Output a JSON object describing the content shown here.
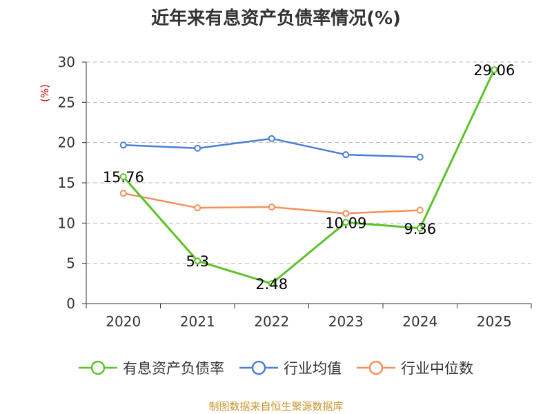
{
  "title": "近年来有息资产负债率情况(%)",
  "y_unit": "(%)",
  "source": "制图数据来自恒生聚源数据库",
  "colors": {
    "debt_ratio": "#5cc22a",
    "industry_avg": "#4a7fd6",
    "industry_median": "#f5905a",
    "axis": "#333333",
    "grid": "#bbbbbb"
  },
  "chart_data": {
    "type": "line",
    "title": "近年来有息资产负债率情况(%)",
    "xlabel": "",
    "ylabel": "(%)",
    "categories": [
      "2020",
      "2021",
      "2022",
      "2023",
      "2024",
      "2025"
    ],
    "ylim": [
      0,
      30
    ],
    "yticks": [
      0,
      5,
      10,
      15,
      20,
      25,
      30
    ],
    "grid": true,
    "legend_position": "bottom",
    "series": [
      {
        "name": "有息资产负债率",
        "color": "#5cc22a",
        "values": [
          15.76,
          5.3,
          2.48,
          10.09,
          9.36,
          29.06
        ],
        "labels": [
          "15.76",
          "5.3",
          "2.48",
          "10.09",
          "9.36",
          "29.06"
        ]
      },
      {
        "name": "行业均值",
        "color": "#4a7fd6",
        "values": [
          19.7,
          19.3,
          20.5,
          18.5,
          18.2,
          null
        ]
      },
      {
        "name": "行业中位数",
        "color": "#f5905a",
        "values": [
          13.7,
          11.9,
          12.0,
          11.2,
          11.6,
          null
        ]
      }
    ]
  }
}
